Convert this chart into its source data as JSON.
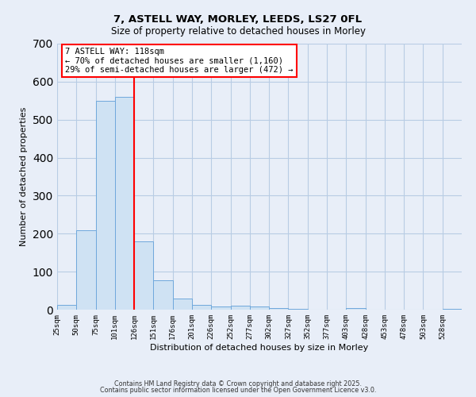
{
  "title_line1": "7, ASTELL WAY, MORLEY, LEEDS, LS27 0FL",
  "title_line2": "Size of property relative to detached houses in Morley",
  "xlabel": "Distribution of detached houses by size in Morley",
  "ylabel": "Number of detached properties",
  "bar_values": [
    12,
    210,
    550,
    560,
    180,
    78,
    30,
    12,
    8,
    10,
    8,
    5,
    2,
    0,
    0,
    4,
    0,
    0,
    0,
    0,
    2
  ],
  "bin_labels": [
    "25sqm",
    "50sqm",
    "75sqm",
    "101sqm",
    "126sqm",
    "151sqm",
    "176sqm",
    "201sqm",
    "226sqm",
    "252sqm",
    "277sqm",
    "302sqm",
    "327sqm",
    "352sqm",
    "377sqm",
    "403sqm",
    "428sqm",
    "453sqm",
    "478sqm",
    "503sqm",
    "528sqm"
  ],
  "bar_color": "#cfe2f3",
  "bar_edge_color": "#6fa8dc",
  "vline_x": 126,
  "vline_color": "red",
  "ylim": [
    0,
    700
  ],
  "yticks": [
    0,
    100,
    200,
    300,
    400,
    500,
    600,
    700
  ],
  "annotation_title": "7 ASTELL WAY: 118sqm",
  "annotation_line1": "← 70% of detached houses are smaller (1,160)",
  "annotation_line2": "29% of semi-detached houses are larger (472) →",
  "bg_color": "#e8eef8",
  "grid_color": "#b8cce4",
  "footer_line1": "Contains HM Land Registry data © Crown copyright and database right 2025.",
  "footer_line2": "Contains public sector information licensed under the Open Government Licence v3.0."
}
